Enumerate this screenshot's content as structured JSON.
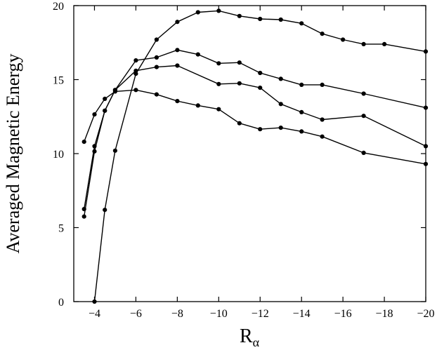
{
  "chart_data": {
    "type": "line",
    "title": "",
    "xlabel": "R",
    "xlabel_subscript": "α",
    "ylabel": "Averaged Magnetic Energy",
    "xlim": [
      -3,
      -20
    ],
    "ylim": [
      0,
      20
    ],
    "x_ticks": [
      -4,
      -6,
      -8,
      -10,
      -12,
      -14,
      -16,
      -18,
      -20
    ],
    "x_tick_labels": [
      "−4",
      "−6",
      "−8",
      "−10",
      "−12",
      "−14",
      "−16",
      "−18",
      "−20"
    ],
    "y_ticks": [
      0,
      5,
      10,
      15,
      20
    ],
    "y_tick_labels": [
      "0",
      "5",
      "10",
      "15",
      "20"
    ],
    "grid": false,
    "legend": "none",
    "marker": "filled-circle",
    "line_color": "#000000",
    "series": [
      {
        "x": [
          -3.5,
          -4,
          -4.5,
          -5,
          -6,
          -7,
          -8,
          -9,
          -10,
          -11,
          -12,
          -13,
          -14,
          -15,
          -16,
          -17,
          -18,
          -20
        ],
        "y": [
          10.8,
          12.65,
          13.7,
          14.2,
          14.3,
          14.0,
          13.55,
          13.25,
          13.0,
          12.05,
          11.65,
          11.75,
          11.5,
          11.15,
          null,
          10.05,
          null,
          9.3
        ]
      },
      {
        "x": [
          -3.5,
          -4,
          -4.5,
          -5,
          -6,
          -7,
          -8,
          -9,
          -10,
          -11,
          -12,
          -13,
          -14,
          -15,
          -16,
          -17,
          -18,
          -20
        ],
        "y": [
          6.25,
          10.5,
          12.9,
          14.3,
          15.6,
          15.85,
          15.95,
          null,
          14.7,
          14.75,
          14.45,
          13.35,
          12.8,
          12.3,
          null,
          12.55,
          null,
          10.5
        ]
      },
      {
        "x": [
          -3.5,
          -4,
          -4.5,
          -5,
          -6,
          -7,
          -8,
          -9,
          -10,
          -11,
          -12,
          -13,
          -14,
          -15,
          -16,
          -17,
          -18,
          -20
        ],
        "y": [
          5.75,
          10.15,
          12.9,
          14.3,
          16.3,
          16.5,
          17.0,
          16.7,
          16.1,
          16.15,
          15.45,
          15.05,
          14.65,
          14.65,
          null,
          14.05,
          null,
          13.1
        ]
      },
      {
        "x": [
          -3.5,
          -4,
          -4.5,
          -5,
          -6,
          -7,
          -8,
          -9,
          -10,
          -11,
          -12,
          -13,
          -14,
          -15,
          -16,
          -17,
          -18,
          -20
        ],
        "y": [
          null,
          0.0,
          6.2,
          10.2,
          15.4,
          17.7,
          18.9,
          19.55,
          19.65,
          19.3,
          19.1,
          19.05,
          18.8,
          18.1,
          17.7,
          17.4,
          17.4,
          16.9
        ]
      }
    ]
  }
}
